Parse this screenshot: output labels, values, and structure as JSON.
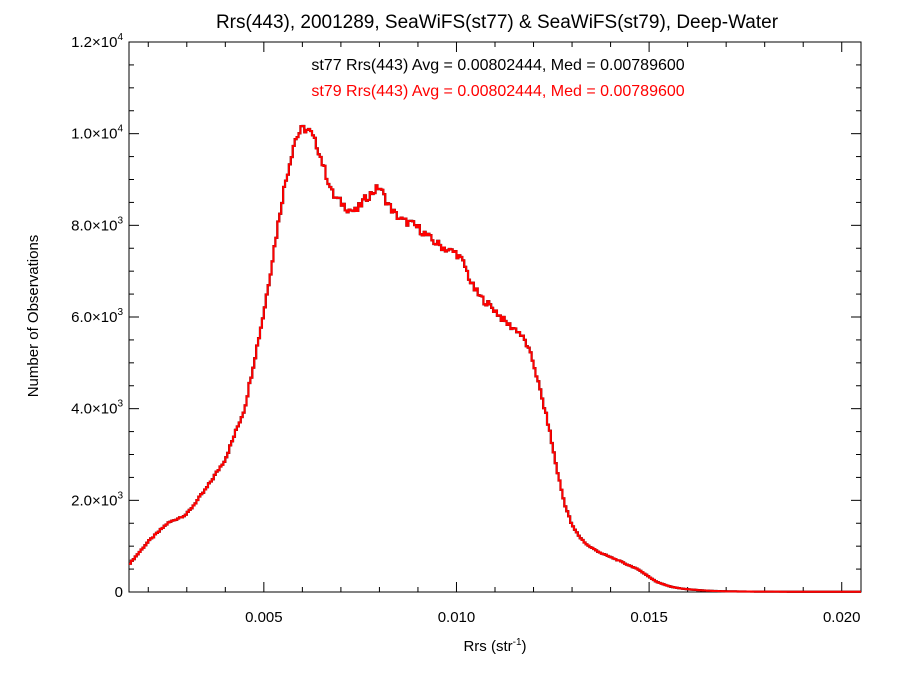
{
  "chart_data": {
    "type": "histogram",
    "title": "Rrs(443), 2001289, SeaWiFS(st77) & SeaWiFS(st79), Deep-Water",
    "xlabel": {
      "base": "Rrs (str",
      "sup": "-1",
      "close": ")"
    },
    "ylabel": "Number of Observations",
    "xlim": [
      0.0015,
      0.0205
    ],
    "ylim": [
      0,
      12000
    ],
    "x_ticks": [
      {
        "value": 0.005,
        "label": "0.005"
      },
      {
        "value": 0.01,
        "label": "0.010"
      },
      {
        "value": 0.015,
        "label": "0.015"
      },
      {
        "value": 0.02,
        "label": "0.020"
      }
    ],
    "y_ticks": [
      {
        "value": 0,
        "base": "0",
        "exp": ""
      },
      {
        "value": 2000,
        "base": "2.0×10",
        "exp": "3"
      },
      {
        "value": 4000,
        "base": "4.0×10",
        "exp": "3"
      },
      {
        "value": 6000,
        "base": "6.0×10",
        "exp": "3"
      },
      {
        "value": 8000,
        "base": "8.0×10",
        "exp": "3"
      },
      {
        "value": 10000,
        "base": "1.0×10",
        "exp": "4"
      },
      {
        "value": 12000,
        "base": "1.2×10",
        "exp": "4"
      }
    ],
    "annotations": [
      {
        "text": "st77 Rrs(443) Avg = 0.00802444, Med = 0.00789600",
        "color": "#000000"
      },
      {
        "text": "st79 Rrs(443) Avg = 0.00802444, Med = 0.00789600",
        "color": "#ff0000"
      }
    ],
    "series": [
      {
        "color": "#000000"
      },
      {
        "color": "#ff0000"
      }
    ],
    "x": [
      0.0015,
      0.002,
      0.0025,
      0.003,
      0.0035,
      0.004,
      0.0045,
      0.005,
      0.0055,
      0.0058,
      0.006,
      0.0062,
      0.0064,
      0.0066,
      0.0068,
      0.007,
      0.0072,
      0.0074,
      0.0076,
      0.0078,
      0.008,
      0.0082,
      0.0084,
      0.0086,
      0.0088,
      0.009,
      0.0092,
      0.0094,
      0.0096,
      0.0098,
      0.01,
      0.0102,
      0.0104,
      0.0106,
      0.0108,
      0.011,
      0.0112,
      0.0114,
      0.0116,
      0.0118,
      0.012,
      0.0122,
      0.0124,
      0.0126,
      0.0128,
      0.013,
      0.0132,
      0.0134,
      0.0136,
      0.0138,
      0.014,
      0.0142,
      0.0144,
      0.0146,
      0.0148,
      0.015,
      0.0152,
      0.0154,
      0.0156,
      0.0158,
      0.016,
      0.0163,
      0.0166,
      0.017,
      0.0175,
      0.018,
      0.019,
      0.02,
      0.0205
    ],
    "y": [
      600,
      1100,
      1500,
      1700,
      2250,
      2900,
      4000,
      6100,
      8700,
      9850,
      10120,
      10050,
      9700,
      9150,
      8650,
      8500,
      8350,
      8300,
      8550,
      8700,
      8850,
      8500,
      8250,
      8100,
      8050,
      7950,
      7800,
      7650,
      7550,
      7450,
      7400,
      7150,
      6700,
      6450,
      6300,
      6150,
      5950,
      5800,
      5700,
      5450,
      5000,
      4300,
      3600,
      2700,
      1950,
      1450,
      1200,
      1020,
      920,
      830,
      760,
      690,
      610,
      540,
      450,
      330,
      220,
      160,
      110,
      80,
      60,
      40,
      25,
      15,
      10,
      8,
      5,
      5,
      5
    ]
  }
}
